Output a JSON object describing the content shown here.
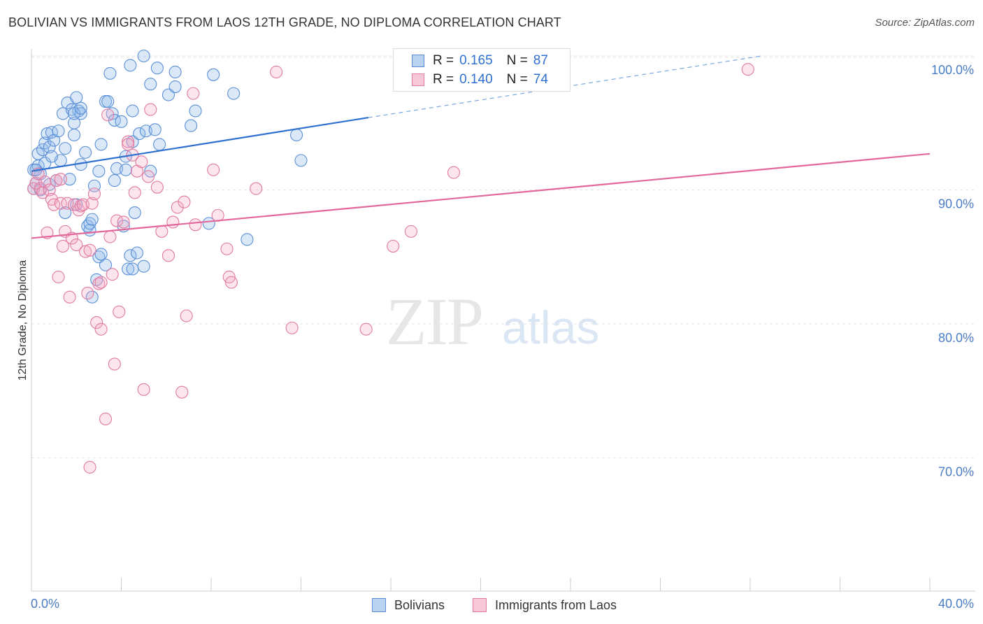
{
  "title": "BOLIVIAN VS IMMIGRANTS FROM LAOS 12TH GRADE, NO DIPLOMA CORRELATION CHART",
  "source": "Source: ZipAtlas.com",
  "watermark": {
    "zip": "ZIP",
    "atlas": "atlas"
  },
  "legend_top": {
    "rows": [
      {
        "r_label": "R =",
        "r_value": "0.165",
        "n_label": "N =",
        "n_value": "87",
        "color": "#5a8fd6",
        "fill": "#b9d2f0"
      },
      {
        "r_label": "R =",
        "r_value": "0.140",
        "n_label": "N =",
        "n_value": "74",
        "color": "#e07aa0",
        "fill": "#f8c8d8"
      }
    ]
  },
  "legend_bottom": [
    {
      "label": "Bolivians",
      "color": "#5a8fd6",
      "fill": "#b9d2f0"
    },
    {
      "label": "Immigrants from Laos",
      "color": "#e07aa0",
      "fill": "#f8c8d8"
    }
  ],
  "chart_data": {
    "type": "scatter",
    "title": "BOLIVIAN VS IMMIGRANTS FROM LAOS 12TH GRADE, NO DIPLOMA CORRELATION CHART",
    "xlabel": "",
    "ylabel": "12th Grade, No Diploma",
    "xlim": [
      0,
      40
    ],
    "ylim": [
      60.5,
      101.5
    ],
    "x_tick_labels": [
      "0.0%",
      "40.0%"
    ],
    "y_ticks": [
      70,
      80,
      90,
      100
    ],
    "y_tick_labels": [
      "70.0%",
      "80.0%",
      "90.0%",
      "100.0%"
    ],
    "grid": true,
    "series": [
      {
        "name": "Bolivians",
        "color": "#5a8fd6",
        "points": [
          [
            0.1,
            90.1
          ],
          [
            0.1,
            91.5
          ],
          [
            0.2,
            90.5
          ],
          [
            0.3,
            91.8
          ],
          [
            0.3,
            92.7
          ],
          [
            0.4,
            91.2
          ],
          [
            0.4,
            90.0
          ],
          [
            0.5,
            93.0
          ],
          [
            0.6,
            92.0
          ],
          [
            0.6,
            93.5
          ],
          [
            0.7,
            94.2
          ],
          [
            0.8,
            93.2
          ],
          [
            0.8,
            90.4
          ],
          [
            0.9,
            94.3
          ],
          [
            1.0,
            93.7
          ],
          [
            1.1,
            90.7
          ],
          [
            1.2,
            94.4
          ],
          [
            1.3,
            92.2
          ],
          [
            1.4,
            95.7
          ],
          [
            1.5,
            93.1
          ],
          [
            1.5,
            88.3
          ],
          [
            1.6,
            96.5
          ],
          [
            1.7,
            90.8
          ],
          [
            1.8,
            96.0
          ],
          [
            1.9,
            94.1
          ],
          [
            1.9,
            95.0
          ],
          [
            2.0,
            88.9
          ],
          [
            2.0,
            96.9
          ],
          [
            2.1,
            95.9
          ],
          [
            2.2,
            95.7
          ],
          [
            2.2,
            91.9
          ],
          [
            2.4,
            92.8
          ],
          [
            2.5,
            87.3
          ],
          [
            2.6,
            87.0
          ],
          [
            2.6,
            87.5
          ],
          [
            2.7,
            87.8
          ],
          [
            2.7,
            82.0
          ],
          [
            2.8,
            90.3
          ],
          [
            2.9,
            83.3
          ],
          [
            3.0,
            91.4
          ],
          [
            3.0,
            85.0
          ],
          [
            3.1,
            85.2
          ],
          [
            3.1,
            93.4
          ],
          [
            3.3,
            84.4
          ],
          [
            3.3,
            96.6
          ],
          [
            3.4,
            96.6
          ],
          [
            3.5,
            98.7
          ],
          [
            3.6,
            95.7
          ],
          [
            3.7,
            90.7
          ],
          [
            3.7,
            95.2
          ],
          [
            3.8,
            91.6
          ],
          [
            4.0,
            95.1
          ],
          [
            4.1,
            87.3
          ],
          [
            4.2,
            92.5
          ],
          [
            4.2,
            91.5
          ],
          [
            4.3,
            84.1
          ],
          [
            4.4,
            99.3
          ],
          [
            4.5,
            93.6
          ],
          [
            4.5,
            95.9
          ],
          [
            4.5,
            84.1
          ],
          [
            4.4,
            85.1
          ],
          [
            4.6,
            88.3
          ],
          [
            4.7,
            85.3
          ],
          [
            4.8,
            94.2
          ],
          [
            5.0,
            100.0
          ],
          [
            5.0,
            84.3
          ],
          [
            5.1,
            94.4
          ],
          [
            5.3,
            91.4
          ],
          [
            5.3,
            97.9
          ],
          [
            5.5,
            94.5
          ],
          [
            5.6,
            99.1
          ],
          [
            5.7,
            93.4
          ],
          [
            6.1,
            97.1
          ],
          [
            6.4,
            98.8
          ],
          [
            6.4,
            97.7
          ],
          [
            7.1,
            94.8
          ],
          [
            7.3,
            95.9
          ],
          [
            7.9,
            87.5
          ],
          [
            8.1,
            98.6
          ],
          [
            9.0,
            97.2
          ],
          [
            9.6,
            86.3
          ],
          [
            11.8,
            94.1
          ],
          [
            12.0,
            92.2
          ],
          [
            0.2,
            91.5
          ],
          [
            0.9,
            92.5
          ],
          [
            1.9,
            95.7
          ],
          [
            2.2,
            96.1
          ]
        ]
      },
      {
        "name": "Immigrants from Laos",
        "color": "#e07aa0",
        "points": [
          [
            0.1,
            90.1
          ],
          [
            0.2,
            90.5
          ],
          [
            0.3,
            91.2
          ],
          [
            0.4,
            90.1
          ],
          [
            0.5,
            89.8
          ],
          [
            0.6,
            90.6
          ],
          [
            0.7,
            86.8
          ],
          [
            0.8,
            90.0
          ],
          [
            0.9,
            89.3
          ],
          [
            1.0,
            88.9
          ],
          [
            1.1,
            90.7
          ],
          [
            1.2,
            83.5
          ],
          [
            1.3,
            89.0
          ],
          [
            1.4,
            85.8
          ],
          [
            1.5,
            86.9
          ],
          [
            1.6,
            89.0
          ],
          [
            1.7,
            82.0
          ],
          [
            1.8,
            86.4
          ],
          [
            1.9,
            88.9
          ],
          [
            2.0,
            85.9
          ],
          [
            2.1,
            88.5
          ],
          [
            2.2,
            88.8
          ],
          [
            2.3,
            88.9
          ],
          [
            2.4,
            85.4
          ],
          [
            2.5,
            82.3
          ],
          [
            2.6,
            85.5
          ],
          [
            2.7,
            89.0
          ],
          [
            2.8,
            89.7
          ],
          [
            2.9,
            80.1
          ],
          [
            3.0,
            83.0
          ],
          [
            3.1,
            83.1
          ],
          [
            3.1,
            79.6
          ],
          [
            3.3,
            72.9
          ],
          [
            3.4,
            95.6
          ],
          [
            3.5,
            86.5
          ],
          [
            3.6,
            83.7
          ],
          [
            3.7,
            77.0
          ],
          [
            3.8,
            87.7
          ],
          [
            3.9,
            80.9
          ],
          [
            4.1,
            87.6
          ],
          [
            4.3,
            93.6
          ],
          [
            4.3,
            93.4
          ],
          [
            4.5,
            92.6
          ],
          [
            4.6,
            89.8
          ],
          [
            4.7,
            91.4
          ],
          [
            4.9,
            92.1
          ],
          [
            5.0,
            75.1
          ],
          [
            5.2,
            91.0
          ],
          [
            5.3,
            96.0
          ],
          [
            5.6,
            90.2
          ],
          [
            5.8,
            86.9
          ],
          [
            6.1,
            85.1
          ],
          [
            6.3,
            87.6
          ],
          [
            6.5,
            88.7
          ],
          [
            6.7,
            74.9
          ],
          [
            6.8,
            89.1
          ],
          [
            6.9,
            80.6
          ],
          [
            7.2,
            97.2
          ],
          [
            7.3,
            87.4
          ],
          [
            8.1,
            91.5
          ],
          [
            8.3,
            88.1
          ],
          [
            8.7,
            85.6
          ],
          [
            8.8,
            83.5
          ],
          [
            8.9,
            83.1
          ],
          [
            10.0,
            90.1
          ],
          [
            10.9,
            98.8
          ],
          [
            11.6,
            79.7
          ],
          [
            16.1,
            85.8
          ],
          [
            16.9,
            86.9
          ],
          [
            18.8,
            91.3
          ],
          [
            14.9,
            79.6
          ],
          [
            31.9,
            99.0
          ],
          [
            2.6,
            69.3
          ],
          [
            1.3,
            90.8
          ]
        ]
      }
    ],
    "trend_lines": [
      {
        "series": "Bolivians",
        "x_start": 0,
        "y_start": 91.4,
        "x_end": 15.0,
        "y_end": 95.4,
        "dashed_to_x": 32.5,
        "dashed_to_y": 100.0
      },
      {
        "series": "Immigrants from Laos",
        "x_start": 0,
        "y_start": 86.4,
        "x_end": 40.0,
        "y_end": 92.7
      }
    ]
  }
}
